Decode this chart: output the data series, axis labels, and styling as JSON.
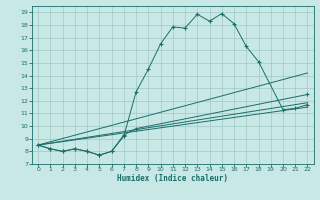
{
  "xlabel": "Humidex (Indice chaleur)",
  "bg_color": "#c8e8e5",
  "grid_color": "#a0c8c5",
  "line_color": "#1a6e6a",
  "xlim": [
    -0.5,
    22.5
  ],
  "ylim": [
    7,
    19.5
  ],
  "xticks": [
    0,
    1,
    2,
    3,
    4,
    5,
    6,
    7,
    8,
    9,
    10,
    11,
    12,
    13,
    14,
    15,
    16,
    17,
    18,
    19,
    20,
    21,
    22
  ],
  "yticks": [
    7,
    8,
    9,
    10,
    11,
    12,
    13,
    14,
    15,
    16,
    17,
    18,
    19
  ],
  "curve1_x": [
    0,
    1,
    2,
    3,
    4,
    5,
    6,
    7,
    8,
    9,
    10,
    11,
    12,
    13,
    14,
    15,
    16,
    17,
    18,
    20,
    21,
    22
  ],
  "curve1_y": [
    8.5,
    8.2,
    8.0,
    8.2,
    8.0,
    7.7,
    8.0,
    9.2,
    12.7,
    14.5,
    16.5,
    17.85,
    17.75,
    18.85,
    18.3,
    18.9,
    18.1,
    16.3,
    15.1,
    11.3,
    11.4,
    11.7
  ],
  "curve2_x": [
    0,
    1,
    2,
    3,
    4,
    5,
    6,
    7,
    8,
    22
  ],
  "curve2_y": [
    8.5,
    8.2,
    8.0,
    8.2,
    8.0,
    7.7,
    8.0,
    9.3,
    9.8,
    12.5
  ],
  "line3_x": [
    0,
    22
  ],
  "line3_y": [
    8.5,
    14.2
  ],
  "line4_x": [
    0,
    22
  ],
  "line4_y": [
    8.5,
    11.5
  ],
  "line5_x": [
    0,
    22
  ],
  "line5_y": [
    8.5,
    11.85
  ]
}
